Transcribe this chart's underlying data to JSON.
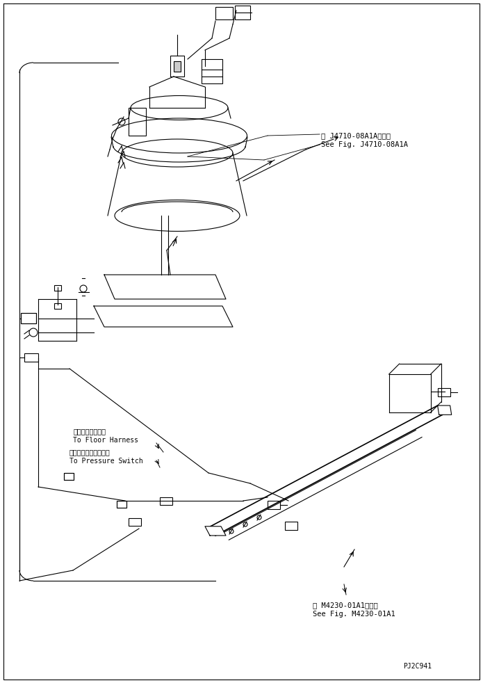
{
  "bg_color": "#ffffff",
  "line_color": "#000000",
  "fig_width": 6.95,
  "fig_height": 9.82,
  "dpi": 100,
  "annotation1_line1": "第 J4710-08A1A図参照",
  "annotation1_line2": "See Fig. J4710-08A1A",
  "annotation2_line1": "フロアハーネスへ",
  "annotation2_line2": "To Floor Harness",
  "annotation3_line1": "プレッシャスイッチへ",
  "annotation3_line2": "To Pressure Switch",
  "annotation4_line1": "第 M4230-01A1図参照",
  "annotation4_line2": "See Fig. M4230-01A1",
  "code_text": "PJ2C941"
}
